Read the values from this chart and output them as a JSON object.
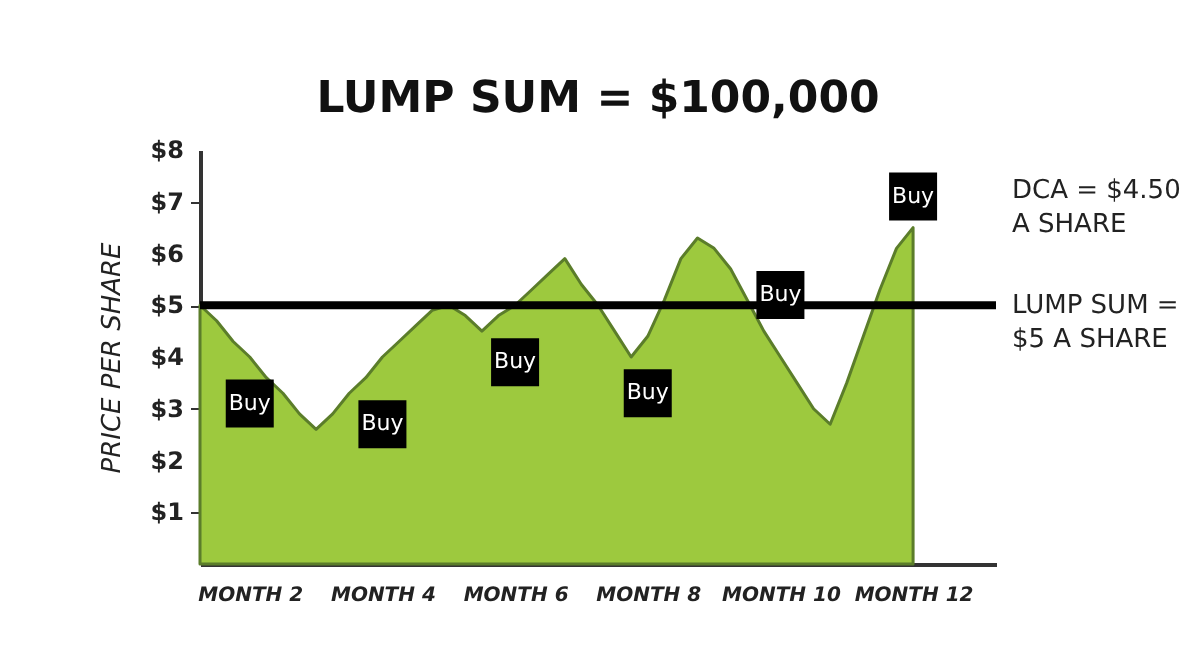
{
  "chart_data": {
    "type": "area",
    "title": "LUMP SUM = $100,000",
    "ylabel": "PRICE PER SHARE",
    "categories": [
      null,
      null,
      null,
      "MONTH 2",
      null,
      null,
      null,
      null,
      null,
      null,
      null,
      "MONTH 4",
      null,
      null,
      null,
      null,
      null,
      null,
      null,
      "MONTH 6",
      null,
      null,
      null,
      null,
      null,
      null,
      null,
      "MONTH 8",
      null,
      null,
      null,
      null,
      null,
      null,
      null,
      "MONTH 10",
      null,
      null,
      null,
      null,
      null,
      null,
      null,
      "MONTH 12",
      null,
      null,
      null,
      null,
      null
    ],
    "series": [
      {
        "color": "#9dc93e",
        "values": [
          5.0,
          4.7,
          4.3,
          4.0,
          3.6,
          3.3,
          2.9,
          2.6,
          2.9,
          3.3,
          3.6,
          4.0,
          4.3,
          4.6,
          4.9,
          5.0,
          4.8,
          4.5,
          4.8,
          5.0,
          5.3,
          5.6,
          5.9,
          5.4,
          5.0,
          4.5,
          4.0,
          4.4,
          5.1,
          5.9,
          6.3,
          6.1,
          5.7,
          5.1,
          4.5,
          4.0,
          3.5,
          3.0,
          2.7,
          3.5,
          4.4,
          5.3,
          6.1,
          6.5,
          null,
          null,
          null,
          null,
          null
        ]
      }
    ],
    "ylim": [
      0,
      8
    ],
    "yticks": [
      {
        "value": 1,
        "label": "$1"
      },
      {
        "value": 2,
        "label": "$2"
      },
      {
        "value": 3,
        "label": "$3"
      },
      {
        "value": 4,
        "label": "$4"
      },
      {
        "value": 5,
        "label": "$5"
      },
      {
        "value": 6,
        "label": "$6"
      },
      {
        "value": 7,
        "label": "$7"
      },
      {
        "value": 8,
        "label": "$8"
      }
    ],
    "grid": false,
    "ref_lines": [
      {
        "axis": "y",
        "value": 5,
        "label": "LUMP SUM = $5 A SHARE",
        "color": "#000000"
      }
    ],
    "annotations": [
      {
        "text": "Buy",
        "x": "MONTH 2",
        "y": 3.1
      },
      {
        "text": "Buy",
        "x": "MONTH 4",
        "y": 2.7
      },
      {
        "text": "Buy",
        "x": "MONTH 6",
        "y": 3.9
      },
      {
        "text": "Buy",
        "x": "MONTH 8",
        "y": 3.3
      },
      {
        "text": "Buy",
        "x": "MONTH 10",
        "y": 5.2
      },
      {
        "text": "Buy",
        "x": "MONTH 12",
        "y": 7.1
      },
      "DCA = $4.50 A SHARE"
    ]
  }
}
